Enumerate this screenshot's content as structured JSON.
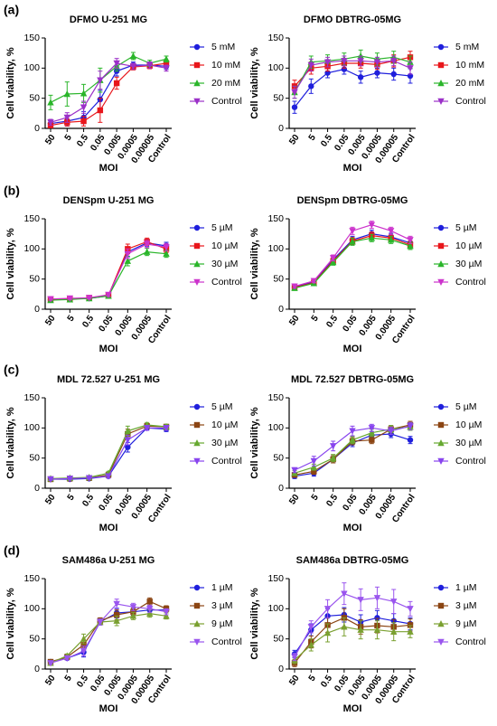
{
  "panel_labels": [
    "(a)",
    "(b)",
    "(c)",
    "(d)"
  ],
  "chart_data": [
    {
      "type": "line",
      "title": "DFMO U-251 MG",
      "xlabel": "MOI",
      "ylabel": "Cell viability, %",
      "categories": [
        "50",
        "5",
        "0.5",
        "0.05",
        "0.005",
        "0.0005",
        "0.00005",
        "Control"
      ],
      "ylim": [
        0,
        150
      ],
      "yticks": [
        0,
        50,
        100,
        150
      ],
      "series": [
        {
          "name": "5 mM",
          "color": "#1f1fdc",
          "marker": "circle",
          "values": [
            8,
            12,
            18,
            48,
            95,
            105,
            105,
            103
          ],
          "errors": [
            5,
            8,
            10,
            15,
            8,
            5,
            5,
            5
          ]
        },
        {
          "name": "10 mM",
          "color": "#e8161b",
          "marker": "square",
          "values": [
            5,
            10,
            12,
            30,
            75,
            102,
            104,
            108
          ],
          "errors": [
            4,
            6,
            8,
            20,
            10,
            5,
            5,
            5
          ]
        },
        {
          "name": "20 mM",
          "color": "#2ab52a",
          "marker": "triangle-up",
          "values": [
            43,
            57,
            58,
            80,
            103,
            120,
            108,
            115
          ],
          "errors": [
            12,
            20,
            15,
            20,
            8,
            6,
            5,
            5
          ]
        },
        {
          "name": "Control",
          "color": "#9b30c8",
          "marker": "triangle-down",
          "values": [
            10,
            18,
            35,
            80,
            108,
            103,
            105,
            100
          ],
          "errors": [
            5,
            8,
            10,
            15,
            8,
            5,
            5,
            5
          ]
        }
      ]
    },
    {
      "type": "line",
      "title": "DFMO DBTRG-05MG",
      "xlabel": "MOI",
      "ylabel": "Cell viability, %",
      "categories": [
        "50",
        "5",
        "0.5",
        "0.05",
        "0.005",
        "0.0005",
        "0.00005",
        "Control"
      ],
      "ylim": [
        0,
        150
      ],
      "yticks": [
        0,
        50,
        100,
        150
      ],
      "series": [
        {
          "name": "5 mM",
          "color": "#1f1fdc",
          "marker": "circle",
          "values": [
            35,
            70,
            92,
            98,
            85,
            92,
            90,
            87
          ],
          "errors": [
            10,
            12,
            8,
            8,
            10,
            8,
            10,
            12
          ]
        },
        {
          "name": "10 mM",
          "color": "#e8161b",
          "marker": "square",
          "values": [
            70,
            100,
            103,
            108,
            108,
            106,
            112,
            118
          ],
          "errors": [
            10,
            10,
            8,
            8,
            8,
            8,
            10,
            10
          ]
        },
        {
          "name": "20 mM",
          "color": "#2ab52a",
          "marker": "triangle-up",
          "values": [
            60,
            110,
            112,
            115,
            120,
            115,
            118,
            110
          ],
          "errors": [
            10,
            10,
            10,
            10,
            10,
            10,
            10,
            10
          ]
        },
        {
          "name": "Control",
          "color": "#9b30c8",
          "marker": "triangle-down",
          "values": [
            60,
            105,
            110,
            112,
            112,
            110,
            112,
            100
          ],
          "errors": [
            10,
            10,
            8,
            8,
            8,
            8,
            8,
            10
          ]
        }
      ]
    },
    {
      "type": "line",
      "title": "DENSpm U-251 MG",
      "xlabel": "MOI",
      "ylabel": "Cell viability, %",
      "categories": [
        "50",
        "5",
        "0.5",
        "0.05",
        "0.005",
        "0.0005",
        "Control"
      ],
      "ylim": [
        0,
        150
      ],
      "yticks": [
        0,
        50,
        100,
        150
      ],
      "series": [
        {
          "name": "5 µM",
          "color": "#1f1fdc",
          "marker": "circle",
          "values": [
            16,
            17,
            18,
            22,
            95,
            110,
            105
          ],
          "errors": [
            2,
            2,
            2,
            3,
            8,
            6,
            6
          ]
        },
        {
          "name": "10 µM",
          "color": "#e8161b",
          "marker": "square",
          "values": [
            16,
            17,
            19,
            23,
            100,
            112,
            100
          ],
          "errors": [
            2,
            2,
            2,
            3,
            8,
            6,
            6
          ]
        },
        {
          "name": "30 µM",
          "color": "#2ab52a",
          "marker": "triangle-up",
          "values": [
            15,
            16,
            18,
            22,
            80,
            95,
            92
          ],
          "errors": [
            2,
            2,
            2,
            3,
            8,
            6,
            6
          ]
        },
        {
          "name": "Control",
          "color": "#cc33cc",
          "marker": "triangle-down",
          "values": [
            17,
            18,
            19,
            24,
            92,
            108,
            103
          ],
          "errors": [
            2,
            2,
            2,
            3,
            8,
            6,
            6
          ]
        }
      ]
    },
    {
      "type": "line",
      "title": "DENSpm DBTRG-05MG",
      "xlabel": "MOI",
      "ylabel": "Cell viability, %",
      "categories": [
        "50",
        "5",
        "0.5",
        "0.05",
        "0.005",
        "0.0005",
        "Control"
      ],
      "ylim": [
        0,
        150
      ],
      "yticks": [
        0,
        50,
        100,
        150
      ],
      "series": [
        {
          "name": "5 µM",
          "color": "#1f1fdc",
          "marker": "circle",
          "values": [
            37,
            45,
            82,
            115,
            125,
            120,
            110
          ],
          "errors": [
            3,
            3,
            5,
            6,
            6,
            6,
            6
          ]
        },
        {
          "name": "10 µM",
          "color": "#e8161b",
          "marker": "square",
          "values": [
            36,
            44,
            80,
            113,
            122,
            118,
            107
          ],
          "errors": [
            3,
            3,
            5,
            6,
            6,
            6,
            6
          ]
        },
        {
          "name": "30 µM",
          "color": "#2ab52a",
          "marker": "triangle-up",
          "values": [
            35,
            43,
            78,
            112,
            118,
            115,
            105
          ],
          "errors": [
            3,
            3,
            5,
            6,
            6,
            6,
            6
          ]
        },
        {
          "name": "Control",
          "color": "#cc33cc",
          "marker": "triangle-down",
          "values": [
            38,
            47,
            85,
            130,
            140,
            130,
            115
          ],
          "errors": [
            3,
            3,
            5,
            6,
            6,
            6,
            6
          ]
        }
      ]
    },
    {
      "type": "line",
      "title": "MDL 72.527 U-251 MG",
      "xlabel": "MOI",
      "ylabel": "Cell viability, %",
      "categories": [
        "50",
        "5",
        "0.5",
        "0.05",
        "0.005",
        "0.0005",
        "Control"
      ],
      "ylim": [
        0,
        150
      ],
      "yticks": [
        0,
        50,
        100,
        150
      ],
      "series": [
        {
          "name": "5 µM",
          "color": "#1f1fdc",
          "marker": "circle",
          "values": [
            15,
            15,
            16,
            20,
            68,
            100,
            98
          ],
          "errors": [
            2,
            2,
            2,
            3,
            8,
            4,
            4
          ]
        },
        {
          "name": "10 µM",
          "color": "#8b4513",
          "marker": "square",
          "values": [
            15,
            16,
            17,
            22,
            90,
            103,
            102
          ],
          "errors": [
            2,
            2,
            2,
            3,
            8,
            4,
            4
          ]
        },
        {
          "name": "30 µM",
          "color": "#66a830",
          "marker": "triangle-up",
          "values": [
            16,
            17,
            18,
            25,
            95,
            105,
            102
          ],
          "errors": [
            2,
            2,
            2,
            3,
            8,
            4,
            4
          ]
        },
        {
          "name": "Control",
          "color": "#8844ee",
          "marker": "triangle-down",
          "values": [
            15,
            16,
            17,
            20,
            80,
            100,
            100
          ],
          "errors": [
            2,
            2,
            2,
            3,
            8,
            4,
            4
          ]
        }
      ]
    },
    {
      "type": "line",
      "title": "MDL 72.527 DBTRG-05MG",
      "xlabel": "MOI",
      "ylabel": "Cell viability, %",
      "categories": [
        "50",
        "5",
        "0.5",
        "0.05",
        "0.005",
        "0.0005",
        "Control"
      ],
      "ylim": [
        0,
        150
      ],
      "yticks": [
        0,
        50,
        100,
        150
      ],
      "series": [
        {
          "name": "5 µM",
          "color": "#1f1fdc",
          "marker": "circle",
          "values": [
            20,
            25,
            48,
            75,
            88,
            90,
            80
          ],
          "errors": [
            4,
            5,
            6,
            6,
            6,
            6,
            6
          ]
        },
        {
          "name": "10 µM",
          "color": "#8b4513",
          "marker": "square",
          "values": [
            22,
            28,
            48,
            78,
            80,
            98,
            105
          ],
          "errors": [
            4,
            5,
            6,
            6,
            6,
            6,
            6
          ]
        },
        {
          "name": "30 µM",
          "color": "#66a830",
          "marker": "triangle-up",
          "values": [
            25,
            35,
            50,
            80,
            92,
            98,
            102
          ],
          "errors": [
            4,
            5,
            6,
            6,
            6,
            6,
            6
          ]
        },
        {
          "name": "Control",
          "color": "#8844ee",
          "marker": "triangle-down",
          "values": [
            30,
            45,
            70,
            95,
            100,
            95,
            103
          ],
          "errors": [
            4,
            8,
            8,
            8,
            6,
            6,
            6
          ]
        }
      ]
    },
    {
      "type": "line",
      "title": "SAM486a U-251 MG",
      "xlabel": "MOI",
      "ylabel": "Cell viability, %",
      "categories": [
        "50",
        "5",
        "0.5",
        "0.05",
        "0.005",
        "0.0005",
        "0.00005",
        "Control"
      ],
      "ylim": [
        0,
        150
      ],
      "yticks": [
        0,
        50,
        100,
        150
      ],
      "series": [
        {
          "name": "1 µM",
          "color": "#1f1fdc",
          "marker": "circle",
          "values": [
            12,
            18,
            28,
            78,
            93,
            95,
            98,
            98
          ],
          "errors": [
            2,
            3,
            8,
            5,
            8,
            6,
            6,
            5
          ]
        },
        {
          "name": "3 µM",
          "color": "#8b4513",
          "marker": "square",
          "values": [
            12,
            20,
            40,
            80,
            90,
            95,
            112,
            100
          ],
          "errors": [
            2,
            3,
            8,
            5,
            8,
            6,
            6,
            5
          ]
        },
        {
          "name": "9 µM",
          "color": "#7aa030",
          "marker": "triangle-up",
          "values": [
            10,
            22,
            50,
            78,
            80,
            88,
            92,
            88
          ],
          "errors": [
            2,
            3,
            8,
            5,
            8,
            6,
            6,
            5
          ]
        },
        {
          "name": "Control",
          "color": "#9a55ee",
          "marker": "triangle-down",
          "values": [
            10,
            18,
            30,
            78,
            108,
            103,
            100,
            95
          ],
          "errors": [
            2,
            3,
            8,
            5,
            8,
            6,
            6,
            5
          ]
        }
      ]
    },
    {
      "type": "line",
      "title": "SAM486a DBTRG-05MG",
      "xlabel": "MOI",
      "ylabel": "Cell viability, %",
      "categories": [
        "50",
        "5",
        "0.5",
        "0.05",
        "0.005",
        "0.0005",
        "0.00005",
        "Control"
      ],
      "ylim": [
        0,
        150
      ],
      "yticks": [
        0,
        50,
        100,
        150
      ],
      "series": [
        {
          "name": "1 µM",
          "color": "#1f1fdc",
          "marker": "circle",
          "values": [
            25,
            65,
            88,
            90,
            78,
            85,
            80,
            75
          ],
          "errors": [
            6,
            10,
            12,
            12,
            12,
            12,
            12,
            10
          ]
        },
        {
          "name": "3 µM",
          "color": "#8b4513",
          "marker": "square",
          "values": [
            10,
            45,
            73,
            85,
            70,
            72,
            70,
            73
          ],
          "errors": [
            6,
            10,
            12,
            15,
            12,
            12,
            12,
            10
          ]
        },
        {
          "name": "9 µM",
          "color": "#7aa030",
          "marker": "triangle-up",
          "values": [
            15,
            40,
            60,
            70,
            65,
            65,
            62,
            62
          ],
          "errors": [
            6,
            10,
            15,
            15,
            15,
            15,
            15,
            10
          ]
        },
        {
          "name": "Control",
          "color": "#9a55ee",
          "marker": "triangle-down",
          "values": [
            20,
            70,
            100,
            125,
            115,
            118,
            112,
            100
          ],
          "errors": [
            6,
            10,
            15,
            18,
            18,
            18,
            20,
            12
          ]
        }
      ]
    }
  ]
}
